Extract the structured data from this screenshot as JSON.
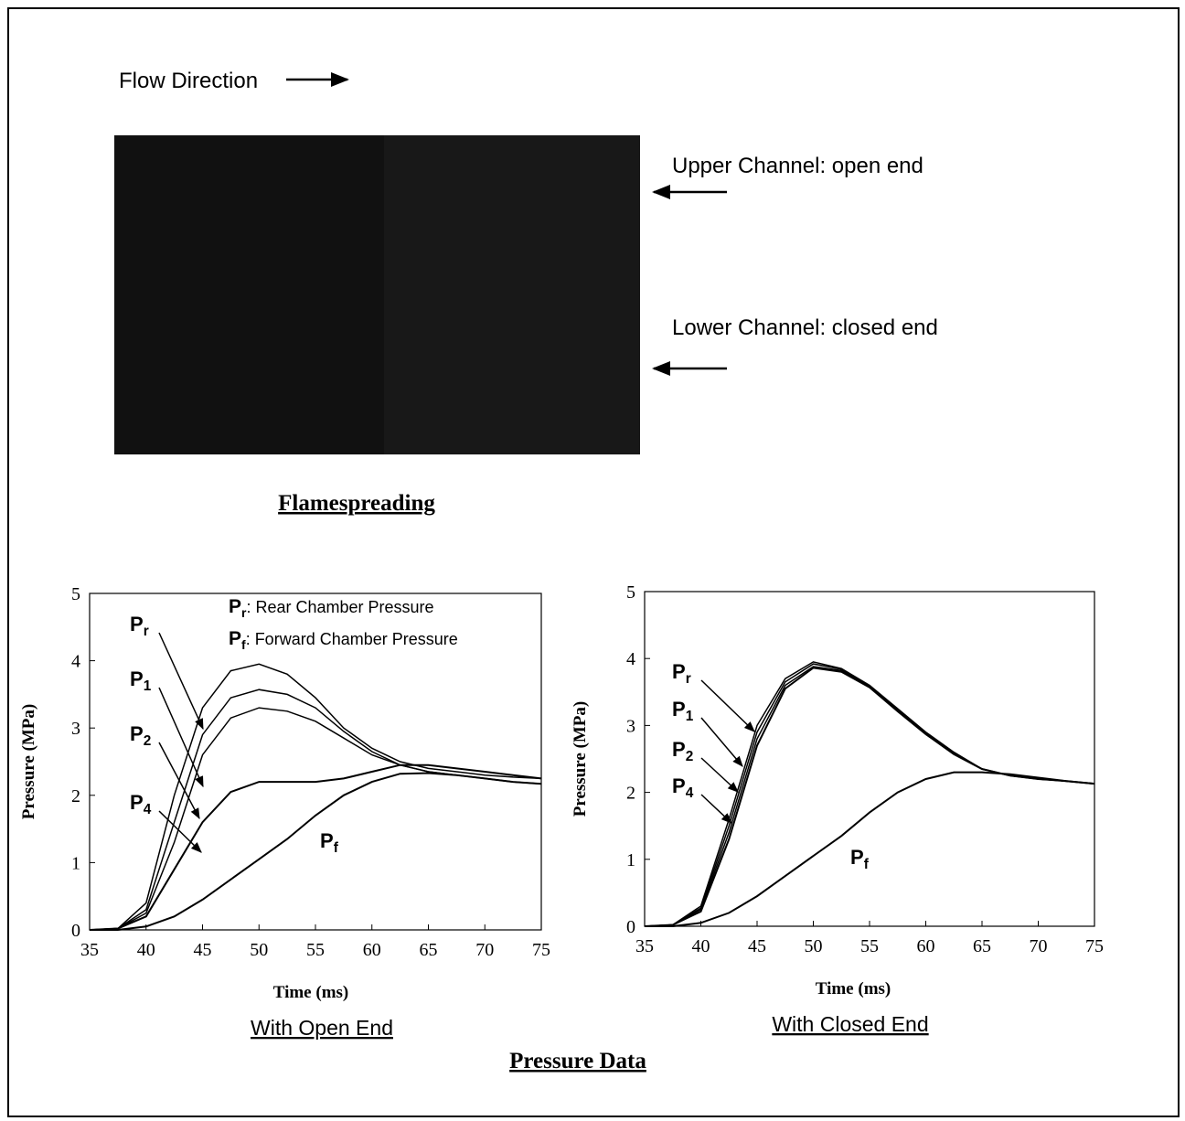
{
  "figure": {
    "flow_direction": "Flow Direction",
    "upper_channel": "Upper Channel: open end",
    "lower_channel": "Lower Channel: closed end",
    "photo_caption": "Flamespreading",
    "section_caption": "Pressure Data"
  },
  "chart_data": [
    {
      "type": "line",
      "caption": "With Open End",
      "xlabel": "Time (ms)",
      "ylabel": "Pressure (MPa)",
      "color": "#000000",
      "xlim": [
        35,
        75
      ],
      "xticks": [
        35,
        40,
        45,
        50,
        55,
        60,
        65,
        70,
        75
      ],
      "ylim": [
        0,
        5
      ],
      "yticks": [
        0,
        1,
        2,
        3,
        4,
        5
      ],
      "x": [
        35,
        37.5,
        40,
        42.5,
        45,
        47.5,
        50,
        52.5,
        55,
        57.5,
        60,
        62.5,
        65,
        67.5,
        70,
        72.5,
        75
      ],
      "series": [
        {
          "name": "P",
          "sub": "r",
          "values": [
            0,
            0.02,
            0.4,
            2.0,
            3.3,
            3.85,
            3.95,
            3.8,
            3.45,
            3.0,
            2.7,
            2.5,
            2.4,
            2.35,
            2.3,
            2.27,
            2.25
          ]
        },
        {
          "name": "P",
          "sub": "1",
          "values": [
            0,
            0.02,
            0.3,
            1.6,
            2.9,
            3.45,
            3.57,
            3.5,
            3.3,
            2.95,
            2.65,
            2.45,
            2.35,
            2.3,
            2.25,
            2.2,
            2.17
          ]
        },
        {
          "name": "P",
          "sub": "2",
          "values": [
            0,
            0.02,
            0.25,
            1.3,
            2.6,
            3.15,
            3.3,
            3.25,
            3.1,
            2.85,
            2.6,
            2.45,
            2.35,
            2.3,
            2.25,
            2.2,
            2.17
          ]
        },
        {
          "name": "P",
          "sub": "4",
          "values": [
            0,
            0.02,
            0.2,
            0.9,
            1.6,
            2.05,
            2.2,
            2.2,
            2.2,
            2.25,
            2.35,
            2.45,
            2.45,
            2.4,
            2.35,
            2.3,
            2.25
          ]
        },
        {
          "name": "P",
          "sub": "f",
          "values": [
            0,
            0,
            0.05,
            0.2,
            0.45,
            0.75,
            1.05,
            1.35,
            1.7,
            2.0,
            2.2,
            2.32,
            2.33,
            2.3,
            2.25,
            2.2,
            2.17
          ]
        }
      ],
      "annotations": [
        {
          "text": "P",
          "sub": "r",
          "suffix": ": Rear Chamber Pressure"
        },
        {
          "text": "P",
          "sub": "f",
          "suffix": ": Forward Chamber Pressure"
        }
      ]
    },
    {
      "type": "line",
      "caption": "With Closed End",
      "xlabel": "Time (ms)",
      "ylabel": "Pressure (MPa)",
      "color": "#000000",
      "xlim": [
        35,
        75
      ],
      "xticks": [
        35,
        40,
        45,
        50,
        55,
        60,
        65,
        70,
        75
      ],
      "ylim": [
        0,
        5
      ],
      "yticks": [
        0,
        1,
        2,
        3,
        4,
        5
      ],
      "x": [
        35,
        37.5,
        40,
        42.5,
        45,
        47.5,
        50,
        52.5,
        55,
        57.5,
        60,
        62.5,
        65,
        67.5,
        70,
        72.5,
        75
      ],
      "series": [
        {
          "name": "P",
          "sub": "r",
          "values": [
            0,
            0.02,
            0.3,
            1.6,
            3.0,
            3.7,
            3.95,
            3.85,
            3.6,
            3.25,
            2.9,
            2.6,
            2.35,
            2.25,
            2.2,
            2.17,
            2.13
          ]
        },
        {
          "name": "P",
          "sub": "1",
          "values": [
            0,
            0.02,
            0.25,
            1.4,
            2.8,
            3.6,
            3.88,
            3.82,
            3.58,
            3.22,
            2.88,
            2.58,
            2.35,
            2.25,
            2.2,
            2.17,
            2.13
          ]
        },
        {
          "name": "P",
          "sub": "2",
          "values": [
            0,
            0.02,
            0.27,
            1.5,
            2.9,
            3.65,
            3.92,
            3.84,
            3.59,
            3.23,
            2.89,
            2.59,
            2.35,
            2.25,
            2.2,
            2.17,
            2.13
          ]
        },
        {
          "name": "P",
          "sub": "4",
          "values": [
            0,
            0.02,
            0.22,
            1.3,
            2.7,
            3.55,
            3.86,
            3.8,
            3.57,
            3.21,
            2.87,
            2.57,
            2.35,
            2.25,
            2.2,
            2.17,
            2.13
          ]
        },
        {
          "name": "P",
          "sub": "f",
          "values": [
            0,
            0,
            0.05,
            0.2,
            0.45,
            0.75,
            1.05,
            1.35,
            1.7,
            2.0,
            2.2,
            2.3,
            2.3,
            2.27,
            2.22,
            2.17,
            2.13
          ]
        }
      ],
      "annotations": []
    }
  ]
}
